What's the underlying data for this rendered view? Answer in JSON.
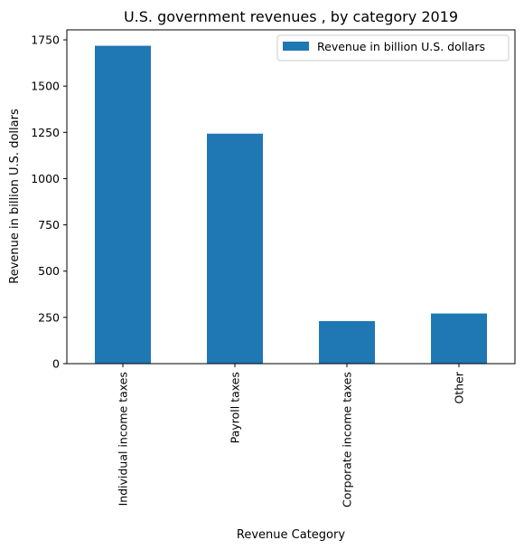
{
  "chart_data": {
    "type": "bar",
    "title": "U.S. government revenues , by category 2019",
    "xlabel": "Revenue Category",
    "ylabel": "Revenue in billion U.S. dollars",
    "categories": [
      "Individual income taxes",
      "Payroll taxes",
      "Corporate income taxes",
      "Other"
    ],
    "series": [
      {
        "name": "Revenue in billion U.S. dollars",
        "values": [
          1718,
          1243,
          230,
          271
        ],
        "color": "#1f77b4"
      }
    ],
    "ylim": [
      0,
      1804
    ],
    "yticks": [
      0,
      250,
      500,
      750,
      1000,
      1250,
      1500,
      1750
    ],
    "grid": false,
    "legend_position": "top-right"
  }
}
